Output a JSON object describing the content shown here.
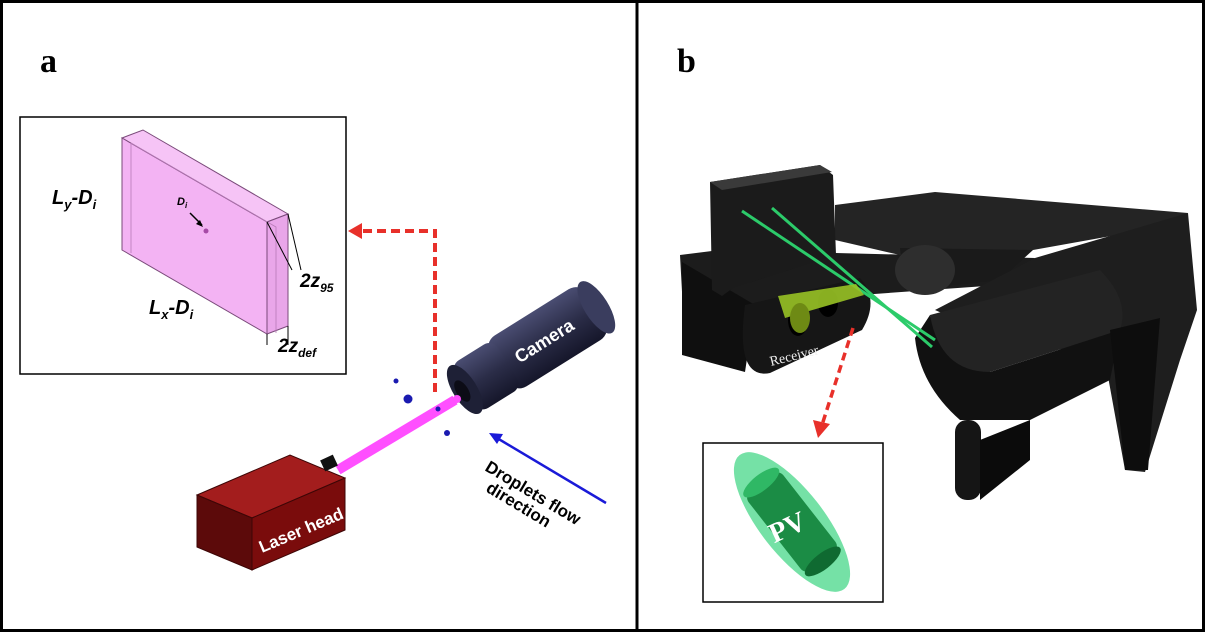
{
  "panels": {
    "a": {
      "letter": "a"
    },
    "b": {
      "letter": "b"
    }
  },
  "inset_a": {
    "ly": "L",
    "ly_sub": "y",
    "ly_tail": "-D",
    "ly_tail_sub": "i",
    "lx": "L",
    "lx_sub": "x",
    "lx_tail": "-D",
    "lx_tail_sub": "i",
    "di": "D",
    "di_sub": "i",
    "z95": "2z",
    "z95_sub": "95",
    "zdef": "2z",
    "zdef_sub": "def"
  },
  "labels_a": {
    "camera": "Camera",
    "laser_head": "Laser head",
    "flow_line1": "Droplets flow",
    "flow_line2": "direction"
  },
  "labels_b": {
    "receiver": "Receiver",
    "pv": "PV"
  },
  "colors": {
    "laser_beam": "#ff4fff",
    "arrow_dashed": "#e8302a",
    "flow_arrow": "#1a1ad8",
    "camera_body": "#2b2d48",
    "laser_box": "#7a0c0c",
    "probe_volume": "#f3b3f3",
    "instrument_b": "#1e1e1e",
    "green_beam": "#2ccb6a"
  }
}
